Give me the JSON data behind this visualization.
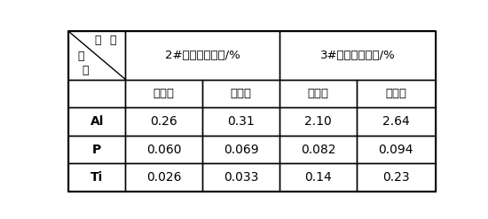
{
  "header_top_left_text1": "方",
  "header_top_left_text2": "法",
  "header_top_left_text3": "元",
  "header_top_left_text4": "素",
  "header_col2": "2#样品测定结果/%",
  "header_col3": "3#样品测定结果/%",
  "subheader": [
    "方法一",
    "方法二",
    "方法一",
    "方法二"
  ],
  "elements": [
    "Al",
    "P",
    "Ti"
  ],
  "data": [
    [
      "0.26",
      "0.31",
      "2.10",
      "2.64"
    ],
    [
      "0.060",
      "0.069",
      "0.082",
      "0.094"
    ],
    [
      "0.026",
      "0.033",
      "0.14",
      "0.23"
    ]
  ],
  "bg_color": "#ffffff",
  "border_color": "#000000",
  "text_color": "#000000"
}
